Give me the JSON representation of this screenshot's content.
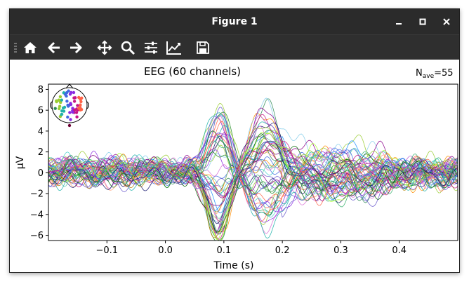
{
  "window": {
    "title": "Figure 1",
    "controls": [
      "minimize",
      "maximize",
      "close"
    ]
  },
  "toolbar": {
    "buttons": [
      {
        "name": "home-icon",
        "label": "Home"
      },
      {
        "name": "back-icon",
        "label": "Back"
      },
      {
        "name": "forward-icon",
        "label": "Forward"
      },
      {
        "name": "pan-icon",
        "label": "Pan"
      },
      {
        "name": "zoom-icon",
        "label": "Zoom"
      },
      {
        "name": "subplots-icon",
        "label": "Subplots"
      },
      {
        "name": "customize-icon",
        "label": "Customize"
      },
      {
        "name": "save-icon",
        "label": "Save"
      }
    ]
  },
  "plot": {
    "title": "EEG (60 channels)",
    "nave_base": "N",
    "nave_sub": "ave",
    "nave_value": "=55",
    "xlabel": "Time (s)",
    "ylabel": "µV"
  },
  "chart_data": {
    "type": "line",
    "title": "EEG (60 channels)",
    "xlabel": "Time (s)",
    "ylabel": "µV",
    "xlim": [
      -0.2,
      0.5
    ],
    "ylim": [
      -6.5,
      8.5
    ],
    "xticks": [
      -0.1,
      0.0,
      0.1,
      0.2,
      0.3,
      0.4
    ],
    "xtick_labels": [
      "−0.1",
      "0.0",
      "0.1",
      "0.2",
      "0.3",
      "0.4"
    ],
    "yticks": [
      -6,
      -4,
      -2,
      0,
      2,
      4,
      6,
      8
    ],
    "ytick_labels": [
      "−6",
      "−4",
      "−2",
      "0",
      "2",
      "4",
      "6",
      "8"
    ],
    "n_channels": 60,
    "legend": "channel-location head inset, top-left",
    "series_profile": {
      "x": [
        -0.2,
        -0.15,
        -0.1,
        -0.05,
        0.0,
        0.04,
        0.07,
        0.09,
        0.1,
        0.13,
        0.16,
        0.2,
        0.25,
        0.3,
        0.35,
        0.4,
        0.45,
        0.5
      ],
      "envelope_max": [
        1.8,
        1.5,
        1.3,
        1.0,
        0.8,
        1.5,
        7.7,
        7.0,
        6.0,
        4.5,
        1.5,
        3.6,
        3.0,
        3.5,
        4.8,
        3.5,
        3.2,
        3.6
      ],
      "envelope_min": [
        -2.6,
        -2.4,
        -2.0,
        -1.8,
        -1.5,
        -1.5,
        -5.3,
        -5.5,
        -5.0,
        -2.0,
        -2.0,
        -3.5,
        -4.8,
        -3.5,
        -3.0,
        -3.5,
        -2.8,
        -3.0
      ]
    }
  }
}
